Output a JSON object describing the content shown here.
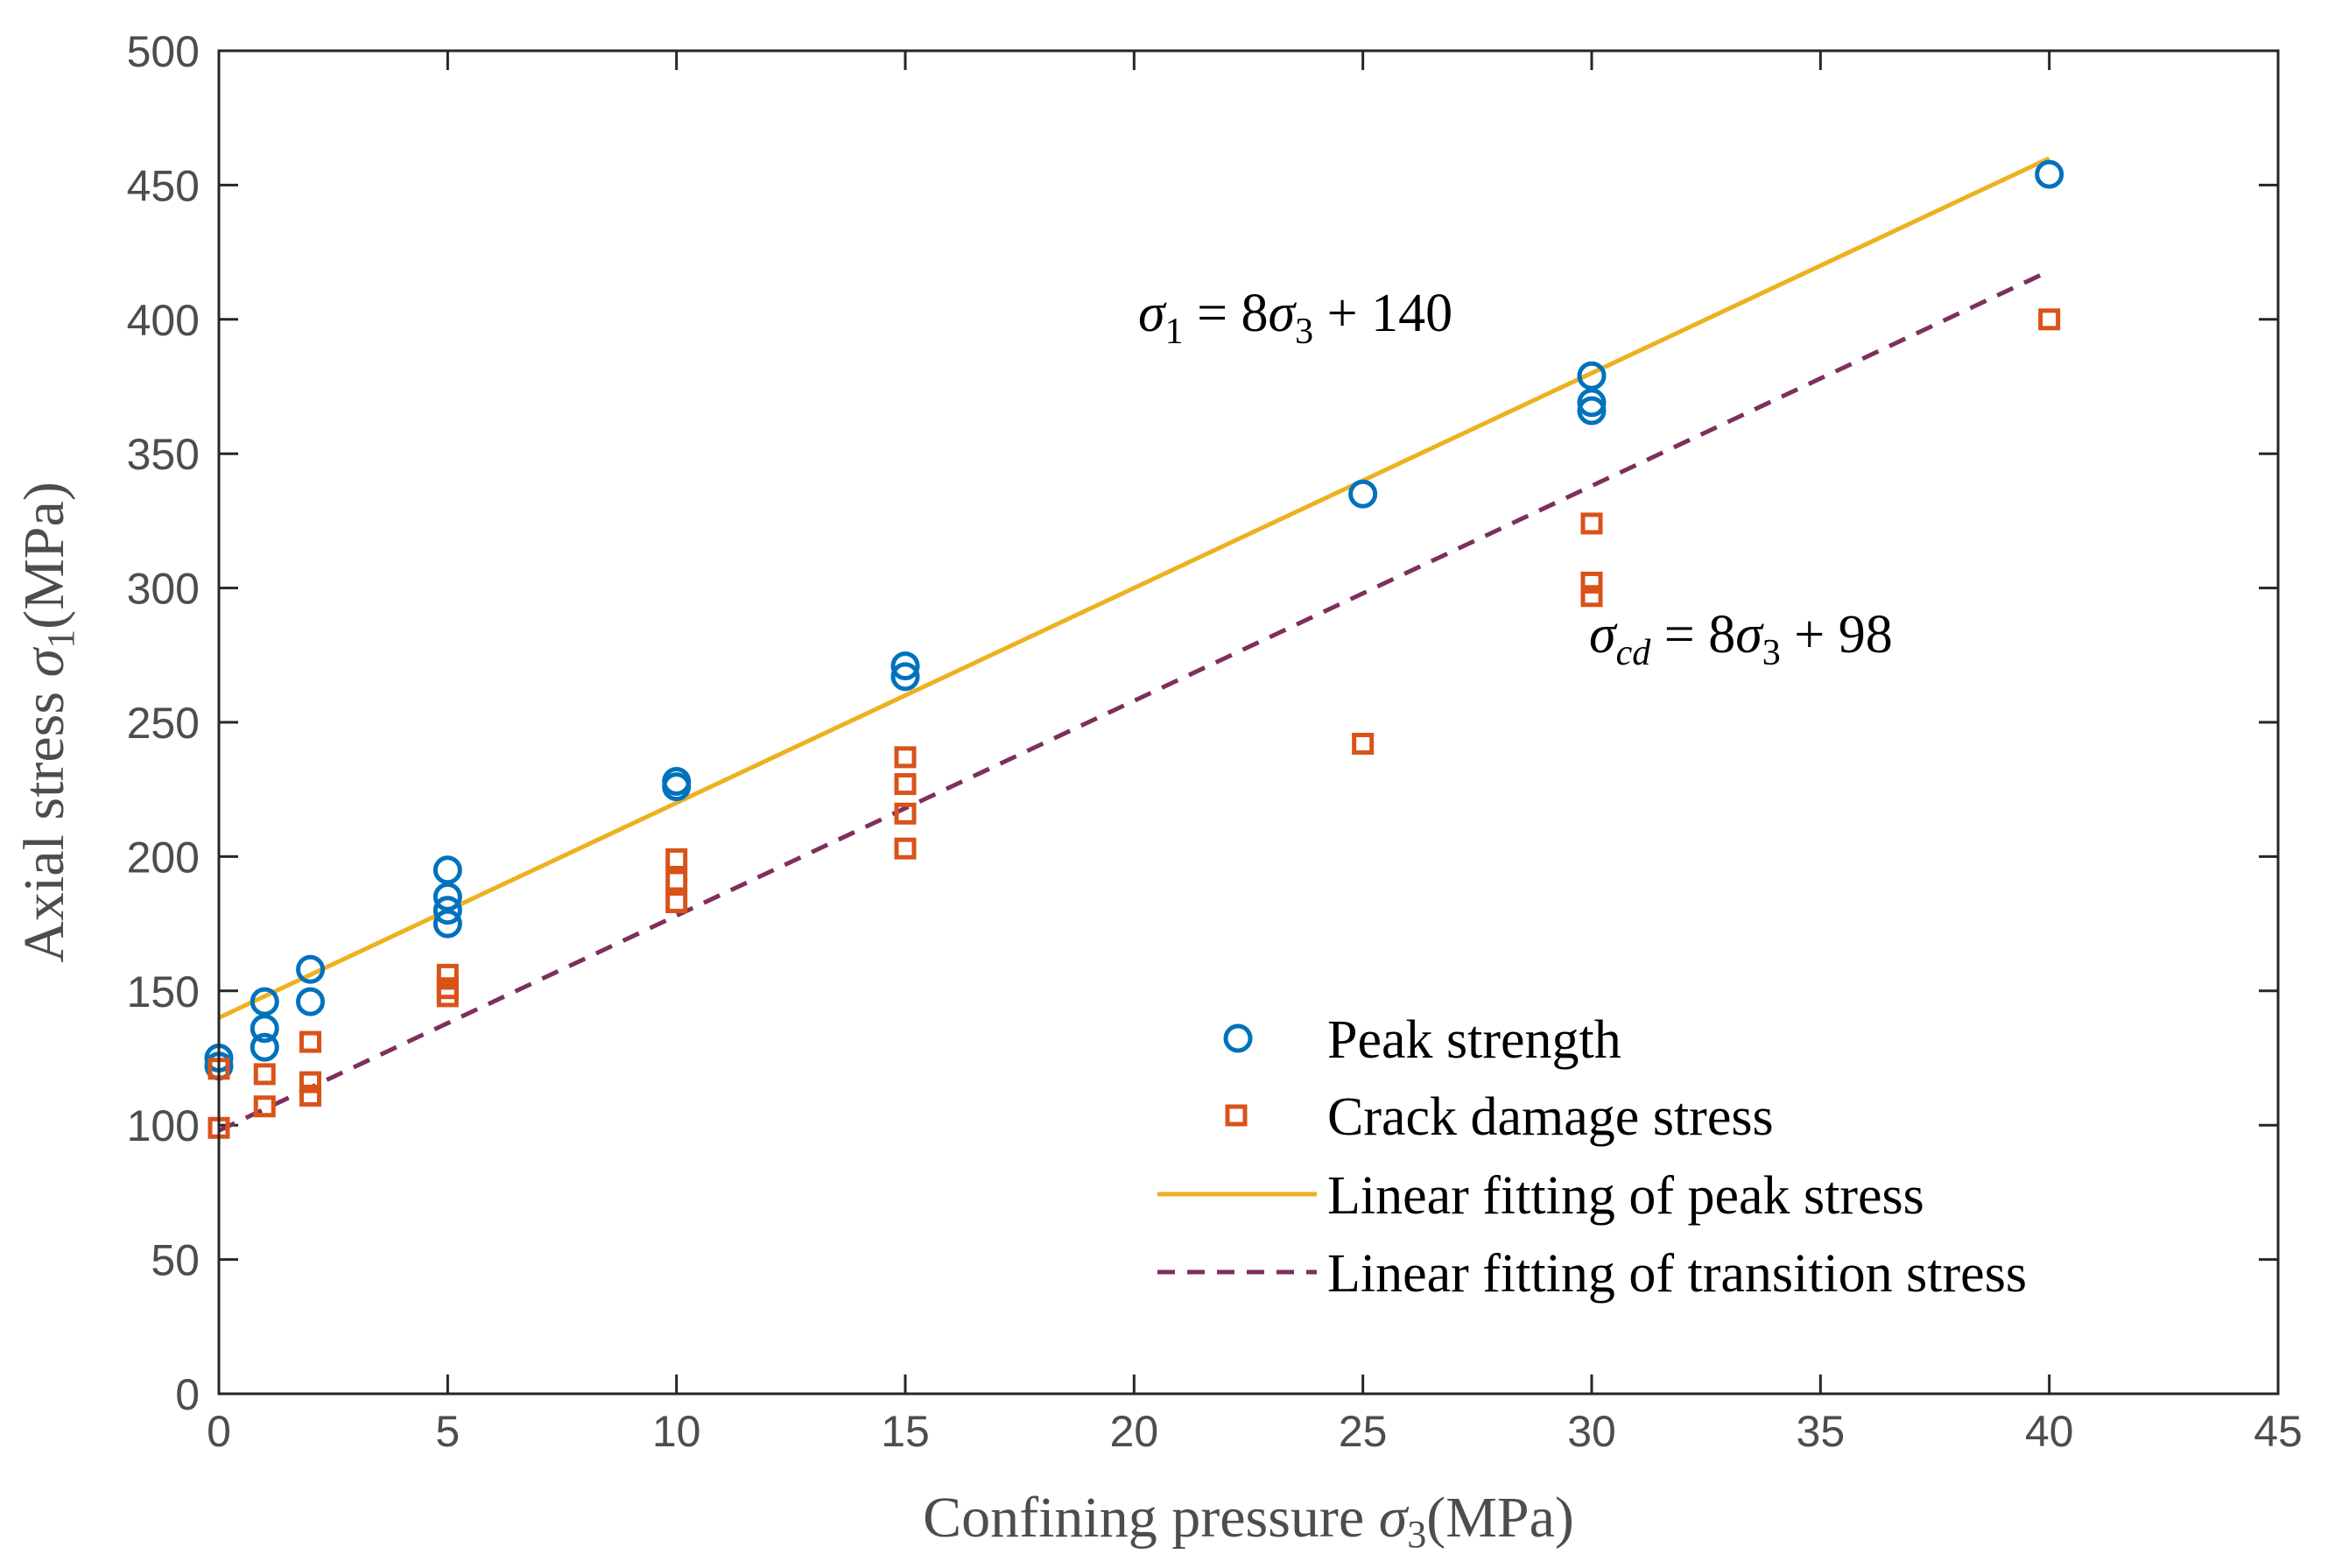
{
  "chart_data": {
    "type": "scatter",
    "xlabel": "Confining pressure σ₃(MPa)",
    "ylabel": "Axial stress σ₁(MPa)",
    "xlim": [
      0,
      45
    ],
    "ylim": [
      0,
      500
    ],
    "xticks": [
      0,
      5,
      10,
      15,
      20,
      25,
      30,
      35,
      40,
      45
    ],
    "yticks": [
      0,
      50,
      100,
      150,
      200,
      250,
      300,
      350,
      400,
      450,
      500
    ],
    "grid": false,
    "legend_position": "bottom-right",
    "series": [
      {
        "name": "Peak strength",
        "kind": "scatter",
        "marker": "circle",
        "color": "#0072BD",
        "points": [
          [
            0,
            125
          ],
          [
            0,
            122
          ],
          [
            1,
            146
          ],
          [
            1,
            136
          ],
          [
            1,
            129
          ],
          [
            2,
            158
          ],
          [
            2,
            146
          ],
          [
            5,
            195
          ],
          [
            5,
            185
          ],
          [
            5,
            180
          ],
          [
            5,
            175
          ],
          [
            10,
            228
          ],
          [
            10,
            226
          ],
          [
            15,
            271
          ],
          [
            15,
            267
          ],
          [
            25,
            335
          ],
          [
            30,
            379
          ],
          [
            30,
            369
          ],
          [
            30,
            366
          ],
          [
            40,
            454
          ]
        ]
      },
      {
        "name": "Crack damage stress",
        "kind": "scatter",
        "marker": "square",
        "color": "#D95319",
        "points": [
          [
            0,
            121
          ],
          [
            0,
            99
          ],
          [
            1,
            119
          ],
          [
            1,
            107
          ],
          [
            2,
            131
          ],
          [
            2,
            116
          ],
          [
            2,
            111
          ],
          [
            5,
            156
          ],
          [
            5,
            151
          ],
          [
            5,
            148
          ],
          [
            10,
            199
          ],
          [
            10,
            191
          ],
          [
            10,
            183
          ],
          [
            15,
            237
          ],
          [
            15,
            227
          ],
          [
            15,
            216
          ],
          [
            15,
            203
          ],
          [
            25,
            242
          ],
          [
            30,
            324
          ],
          [
            30,
            302
          ],
          [
            30,
            297
          ],
          [
            40,
            400
          ]
        ]
      },
      {
        "name": "Linear fitting of peak stress",
        "kind": "line",
        "style": "solid",
        "color": "#EDB120",
        "x": [
          0,
          40
        ],
        "y": [
          140,
          460
        ]
      },
      {
        "name": "Linear fitting of transition stress",
        "kind": "line",
        "style": "dashed",
        "color": "#7E2F5E",
        "x": [
          0,
          40
        ],
        "y": [
          98,
          418
        ]
      }
    ],
    "annotations": [
      {
        "text": "σ₁ = 8σ₃ + 140",
        "at": [
          20,
          400
        ]
      },
      {
        "text": "σcd = 8σ₃ + 98",
        "at": [
          30,
          280
        ]
      }
    ]
  }
}
